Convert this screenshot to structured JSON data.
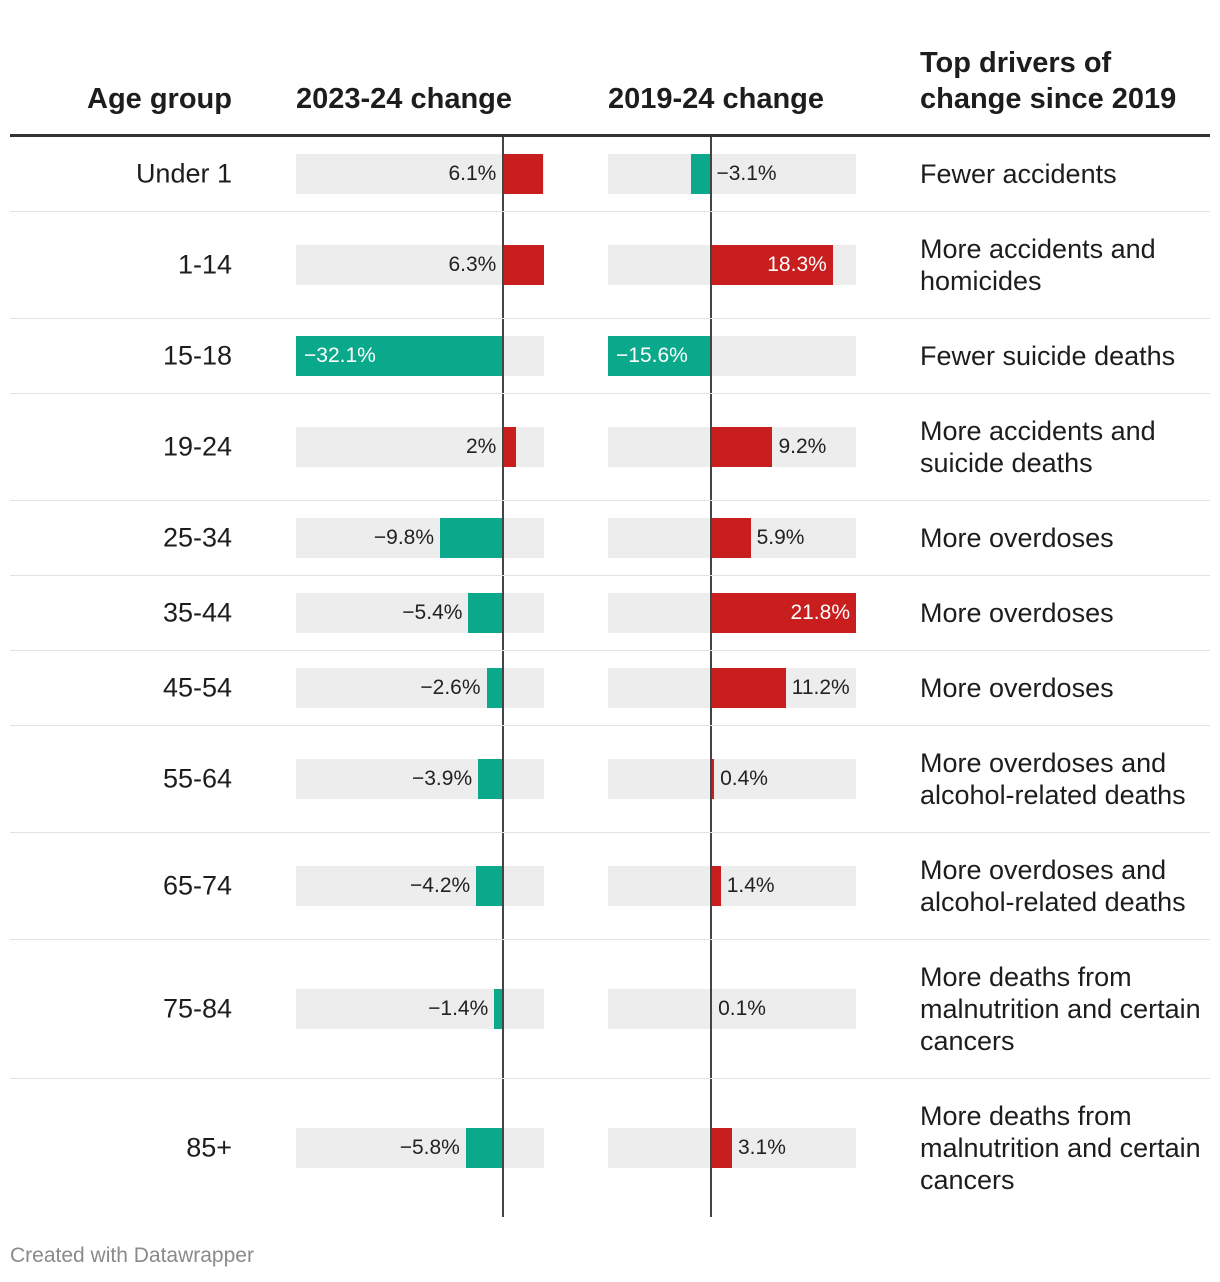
{
  "headers": {
    "age": "Age group",
    "change_2023_24": "2023-24 change",
    "change_2019_24": "2019-24 change",
    "drivers": "Top drivers of change since 2019"
  },
  "colors": {
    "increase": "#c81e1e",
    "decrease": "#0aa98b",
    "track": "#ededed"
  },
  "chart_data": {
    "type": "bar",
    "title": "",
    "categories": [
      "Under 1",
      "1-14",
      "15-18",
      "19-24",
      "25-34",
      "35-44",
      "45-54",
      "55-64",
      "65-74",
      "75-84",
      "85+"
    ],
    "series": [
      {
        "name": "2023-24 change",
        "unit": "%",
        "domain": [
          -32.1,
          6.3
        ],
        "values": [
          6.1,
          6.3,
          -32.1,
          2,
          -9.8,
          -5.4,
          -2.6,
          -3.9,
          -4.2,
          -1.4,
          -5.8
        ],
        "labels": [
          "6.1%",
          "6.3%",
          "−32.1%",
          "2%",
          "−9.8%",
          "−5.4%",
          "−2.6%",
          "−3.9%",
          "−4.2%",
          "−1.4%",
          "−5.8%"
        ]
      },
      {
        "name": "2019-24 change",
        "unit": "%",
        "domain": [
          -15.6,
          21.8
        ],
        "values": [
          -3.1,
          18.3,
          -15.6,
          9.2,
          5.9,
          21.8,
          11.2,
          0.4,
          1.4,
          0.1,
          3.1
        ],
        "labels": [
          "−3.1%",
          "18.3%",
          "−15.6%",
          "9.2%",
          "5.9%",
          "21.8%",
          "11.2%",
          "0.4%",
          "1.4%",
          "0.1%",
          "3.1%"
        ]
      }
    ],
    "drivers": [
      "Fewer accidents",
      "More accidents and homicides",
      "Fewer suicide deaths",
      "More accidents and suicide deaths",
      "More overdoses",
      "More overdoses",
      "More overdoses",
      "More overdoses and alcohol-related deaths",
      "More overdoses and alcohol-related deaths",
      "More deaths from malnutrition and certain cancers",
      "More deaths from malnutrition and certain cancers"
    ]
  },
  "footer": {
    "credit": "Created with Datawrapper"
  }
}
